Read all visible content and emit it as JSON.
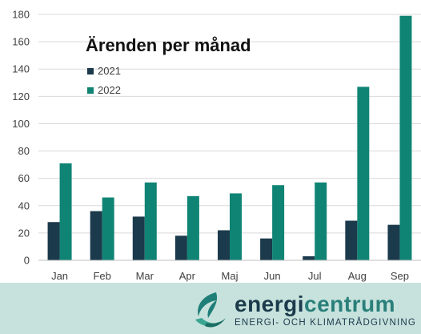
{
  "chart_data": {
    "type": "bar",
    "title": "Ärenden per månad",
    "categories": [
      "Jan",
      "Feb",
      "Mar",
      "Apr",
      "Maj",
      "Jun",
      "Jul",
      "Aug",
      "Sep"
    ],
    "series": [
      {
        "name": "2021",
        "values": [
          28,
          36,
          32,
          18,
          22,
          16,
          3,
          29,
          26
        ],
        "color": "#1b3a4b"
      },
      {
        "name": "2022",
        "values": [
          71,
          46,
          57,
          47,
          49,
          55,
          57,
          127,
          179
        ],
        "color": "#108474"
      }
    ],
    "ylim": [
      0,
      180
    ],
    "yticks": [
      0,
      20,
      40,
      60,
      80,
      100,
      120,
      140,
      160,
      180
    ],
    "grid": true,
    "legend": "top-left"
  },
  "footer": {
    "brand_part1": "energi",
    "brand_part2": "centrum",
    "tagline": "ENERGI- OCH KLIMATRÅDGIVNING",
    "background": "#c7e2dd"
  }
}
